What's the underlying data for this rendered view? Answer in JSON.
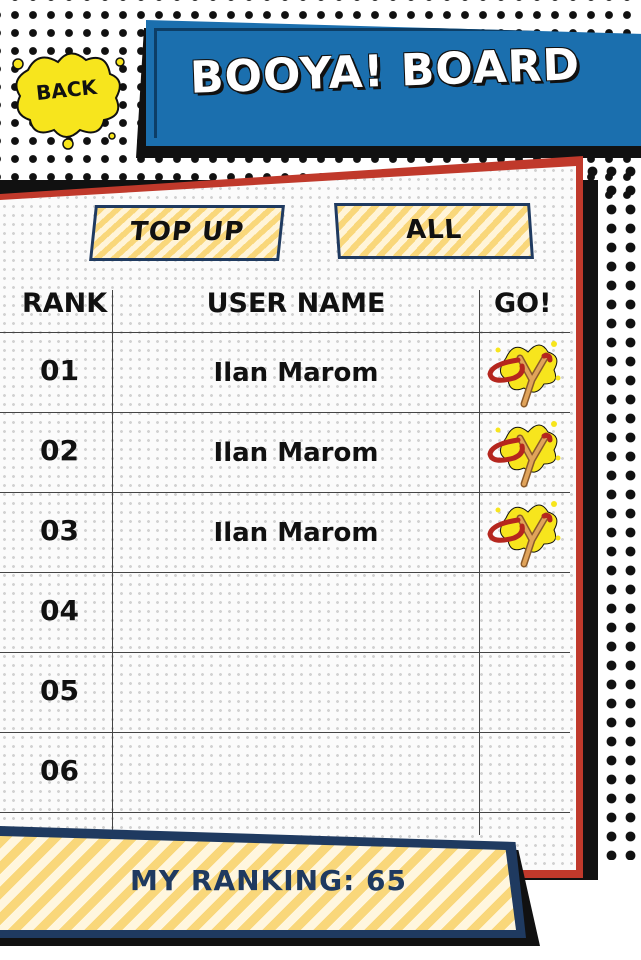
{
  "header": {
    "title": "BOOYA! BOARD",
    "back_label": "BACK"
  },
  "tabs": [
    {
      "label": "TOP UP"
    },
    {
      "label": "ALL"
    }
  ],
  "table": {
    "columns": [
      "RANK",
      "USER NAME",
      "GO!"
    ],
    "rows": [
      {
        "rank": "01",
        "name": "Ilan Marom",
        "go_icon": "slingshot-icon"
      },
      {
        "rank": "02",
        "name": "Ilan Marom",
        "go_icon": "slingshot-icon"
      },
      {
        "rank": "03",
        "name": "Ilan Marom",
        "go_icon": "slingshot-icon"
      },
      {
        "rank": "04",
        "name": "",
        "go_icon": ""
      },
      {
        "rank": "05",
        "name": "",
        "go_icon": ""
      },
      {
        "rank": "06",
        "name": "",
        "go_icon": ""
      }
    ]
  },
  "footer": {
    "my_ranking": "MY RANKING: 65"
  },
  "colors": {
    "banner_blue": "#1b6fae",
    "board_red": "#c0392b",
    "navy": "#1f3a60",
    "stripe_yellow": "#f9d77a",
    "splash_yellow": "#f7e51d"
  }
}
